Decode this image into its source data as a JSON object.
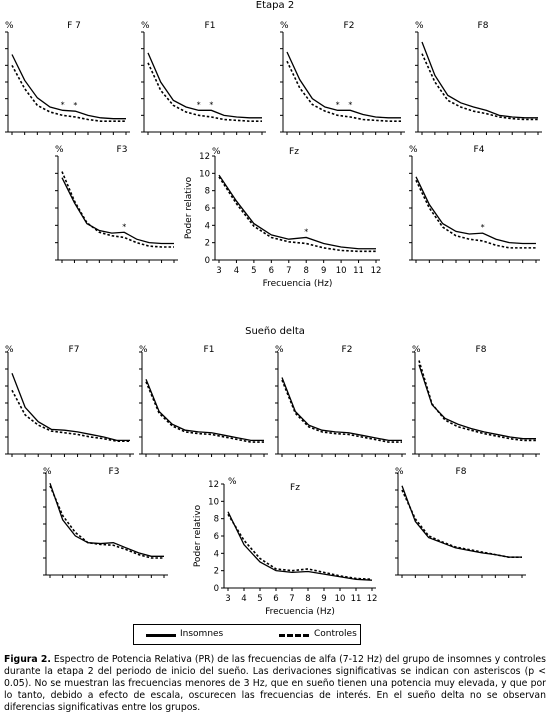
{
  "sections": [
    {
      "title": "Etapa 2"
    },
    {
      "title": "Sueño delta"
    }
  ],
  "legend": {
    "insomnes": "Insomnes",
    "controles": "Controles"
  },
  "caption": {
    "label": "Figura 2.",
    "text": " Espectro de Potencia Relativa (PR) de las frecuencias de alfa (7-12 Hz) del grupo de insomnes y controles durante la etapa 2 del periodo de inicio del sueño. Las derivaciones significativas se indican con asteriscos (p < 0.05). No se muestran las frecuencias menores de 3 Hz, que en sueño tienen una potencia muy elevada, y que por lo tanto, debido a efecto de escala, oscurecen las frecuencias de interés. En el sueño delta no se observan diferencias significativas entre los grupos."
  },
  "colors": {
    "insomnes": "#000000",
    "controles": "#000000"
  },
  "chart_data": [
    {
      "type": "line",
      "panel": "F 7",
      "section": "Etapa 2",
      "percent_label": "%",
      "x": [
        3,
        4,
        5,
        6,
        7,
        8,
        9,
        10,
        11,
        12
      ],
      "ylim": [
        0,
        12
      ],
      "series": [
        {
          "name": "Insomnes",
          "style": "solid",
          "values": [
            9.3,
            6.2,
            4.1,
            3.0,
            2.6,
            2.5,
            2.0,
            1.7,
            1.6,
            1.6
          ]
        },
        {
          "name": "Controles",
          "style": "dashed",
          "values": [
            8.0,
            5.2,
            3.2,
            2.4,
            2.0,
            1.8,
            1.5,
            1.3,
            1.3,
            1.3
          ]
        }
      ],
      "asterisks_at": [
        7,
        8
      ]
    },
    {
      "type": "line",
      "panel": "F1",
      "section": "Etapa 2",
      "percent_label": "%",
      "x": [
        3,
        4,
        5,
        6,
        7,
        8,
        9,
        10,
        11,
        12
      ],
      "ylim": [
        0,
        12
      ],
      "series": [
        {
          "name": "Insomnes",
          "style": "solid",
          "values": [
            9.5,
            6.0,
            3.8,
            3.0,
            2.6,
            2.6,
            2.0,
            1.8,
            1.7,
            1.7
          ]
        },
        {
          "name": "Controles",
          "style": "dashed",
          "values": [
            8.3,
            5.0,
            3.2,
            2.4,
            2.0,
            1.8,
            1.5,
            1.4,
            1.3,
            1.3
          ]
        }
      ],
      "asterisks_at": [
        7,
        8
      ]
    },
    {
      "type": "line",
      "panel": "F2",
      "section": "Etapa 2",
      "percent_label": "%",
      "x": [
        3,
        4,
        5,
        6,
        7,
        8,
        9,
        10,
        11,
        12
      ],
      "ylim": [
        0,
        12
      ],
      "series": [
        {
          "name": "Insomnes",
          "style": "solid",
          "values": [
            9.6,
            6.3,
            4.0,
            3.0,
            2.6,
            2.6,
            2.1,
            1.8,
            1.7,
            1.7
          ]
        },
        {
          "name": "Controles",
          "style": "dashed",
          "values": [
            8.5,
            5.3,
            3.3,
            2.5,
            2.0,
            1.8,
            1.5,
            1.4,
            1.3,
            1.3
          ]
        }
      ],
      "asterisks_at": [
        7,
        8
      ]
    },
    {
      "type": "line",
      "panel": "F8",
      "section": "Etapa 2",
      "percent_label": "%",
      "x": [
        3,
        4,
        5,
        6,
        7,
        8,
        9,
        10,
        11,
        12
      ],
      "ylim": [
        0,
        12
      ],
      "series": [
        {
          "name": "Insomnes",
          "style": "solid",
          "values": [
            10.8,
            6.8,
            4.4,
            3.5,
            3.0,
            2.6,
            2.0,
            1.8,
            1.7,
            1.7
          ]
        },
        {
          "name": "Controles",
          "style": "dashed",
          "values": [
            9.4,
            6.0,
            3.8,
            3.0,
            2.5,
            2.2,
            1.8,
            1.6,
            1.5,
            1.5
          ]
        }
      ],
      "asterisks_at": []
    },
    {
      "type": "line",
      "panel": "F3",
      "section": "Etapa 2",
      "percent_label": "%",
      "x": [
        3,
        4,
        5,
        6,
        7,
        8,
        9,
        10,
        11,
        12
      ],
      "ylim": [
        0,
        12
      ],
      "series": [
        {
          "name": "Insomnes",
          "style": "solid",
          "values": [
            9.5,
            6.6,
            4.2,
            3.4,
            3.1,
            3.2,
            2.4,
            2.0,
            1.9,
            1.9
          ]
        },
        {
          "name": "Controles",
          "style": "dashed",
          "values": [
            10.2,
            6.8,
            4.3,
            3.2,
            2.8,
            2.6,
            2.0,
            1.6,
            1.5,
            1.5
          ]
        }
      ],
      "asterisks_at": [
        8
      ]
    },
    {
      "type": "line",
      "panel": "Fz",
      "section": "Etapa 2",
      "percent_label": "%",
      "x": [
        3,
        4,
        5,
        6,
        7,
        8,
        9,
        10,
        11,
        12
      ],
      "ylim": [
        0,
        12
      ],
      "xlabel": "Frecuencia (Hz)",
      "ylabel": "Poder relativo",
      "xticks": [
        3,
        4,
        5,
        6,
        7,
        8,
        9,
        10,
        11,
        12
      ],
      "yticks": [
        0,
        2,
        4,
        6,
        8,
        10,
        12
      ],
      "series": [
        {
          "name": "Insomnes",
          "style": "solid",
          "values": [
            9.8,
            6.8,
            4.2,
            2.9,
            2.4,
            2.6,
            1.9,
            1.5,
            1.3,
            1.3
          ]
        },
        {
          "name": "Controles",
          "style": "dashed",
          "values": [
            9.6,
            6.5,
            3.9,
            2.6,
            2.1,
            1.9,
            1.4,
            1.1,
            1.0,
            1.0
          ]
        }
      ],
      "asterisks_at": [
        8
      ]
    },
    {
      "type": "line",
      "panel": "F4",
      "section": "Etapa 2",
      "percent_label": "%",
      "x": [
        3,
        4,
        5,
        6,
        7,
        8,
        9,
        10,
        11,
        12
      ],
      "ylim": [
        0,
        12
      ],
      "series": [
        {
          "name": "Insomnes",
          "style": "solid",
          "values": [
            9.6,
            6.4,
            4.2,
            3.3,
            3.0,
            3.1,
            2.4,
            2.0,
            1.9,
            1.9
          ]
        },
        {
          "name": "Controles",
          "style": "dashed",
          "values": [
            9.2,
            6.0,
            3.8,
            2.8,
            2.4,
            2.2,
            1.7,
            1.4,
            1.4,
            1.4
          ]
        }
      ],
      "asterisks_at": [
        8
      ]
    },
    {
      "type": "line",
      "panel": "F7",
      "section": "Sueño delta",
      "percent_label": "%",
      "x": [
        3,
        4,
        5,
        6,
        7,
        8,
        9,
        10,
        11,
        12
      ],
      "ylim": [
        0,
        12
      ],
      "series": [
        {
          "name": "Insomnes",
          "style": "solid",
          "values": [
            9.5,
            5.5,
            3.8,
            2.9,
            2.8,
            2.6,
            2.3,
            2.0,
            1.6,
            1.6
          ]
        },
        {
          "name": "Controles",
          "style": "dashed",
          "values": [
            7.5,
            4.6,
            3.4,
            2.7,
            2.5,
            2.3,
            2.0,
            1.8,
            1.5,
            1.5
          ]
        }
      ],
      "asterisks_at": []
    },
    {
      "type": "line",
      "panel": "F1",
      "section": "Sueño delta",
      "percent_label": "%",
      "x": [
        3,
        4,
        5,
        6,
        7,
        8,
        9,
        10,
        11,
        12
      ],
      "ylim": [
        0,
        12
      ],
      "series": [
        {
          "name": "Insomnes",
          "style": "solid",
          "values": [
            8.8,
            5.0,
            3.5,
            2.8,
            2.6,
            2.5,
            2.2,
            1.9,
            1.6,
            1.6
          ]
        },
        {
          "name": "Controles",
          "style": "dashed",
          "values": [
            8.5,
            4.8,
            3.3,
            2.6,
            2.4,
            2.3,
            2.0,
            1.7,
            1.4,
            1.4
          ]
        }
      ],
      "asterisks_at": []
    },
    {
      "type": "line",
      "panel": "F2",
      "section": "Sueño delta",
      "percent_label": "%",
      "x": [
        3,
        4,
        5,
        6,
        7,
        8,
        9,
        10,
        11,
        12
      ],
      "ylim": [
        0,
        12
      ],
      "series": [
        {
          "name": "Insomnes",
          "style": "solid",
          "values": [
            9.0,
            5.0,
            3.4,
            2.8,
            2.6,
            2.5,
            2.2,
            1.9,
            1.6,
            1.6
          ]
        },
        {
          "name": "Controles",
          "style": "dashed",
          "values": [
            8.7,
            4.8,
            3.2,
            2.6,
            2.4,
            2.3,
            2.0,
            1.7,
            1.4,
            1.4
          ]
        }
      ],
      "asterisks_at": []
    },
    {
      "type": "line",
      "panel": "F8",
      "section": "Sueño delta",
      "percent_label": "%",
      "x": [
        3,
        4,
        5,
        6,
        7,
        8,
        9,
        10,
        11,
        12
      ],
      "ylim": [
        0,
        12
      ],
      "series": [
        {
          "name": "Insomnes",
          "style": "solid",
          "values": [
            10.5,
            5.8,
            4.2,
            3.5,
            3.0,
            2.6,
            2.3,
            2.0,
            1.8,
            1.8
          ]
        },
        {
          "name": "Controles",
          "style": "dashed",
          "values": [
            11.0,
            5.9,
            4.0,
            3.2,
            2.8,
            2.4,
            2.1,
            1.8,
            1.6,
            1.6
          ]
        }
      ],
      "asterisks_at": []
    },
    {
      "type": "line",
      "panel": "F3",
      "section": "Sueño delta",
      "percent_label": "%",
      "x": [
        3,
        4,
        5,
        6,
        7,
        8,
        9,
        10,
        11,
        12
      ],
      "ylim": [
        0,
        12
      ],
      "series": [
        {
          "name": "Insomnes",
          "style": "solid",
          "values": [
            10.8,
            6.5,
            4.6,
            3.8,
            3.7,
            3.8,
            3.2,
            2.6,
            2.2,
            2.2
          ]
        },
        {
          "name": "Controles",
          "style": "dashed",
          "values": [
            10.5,
            7.0,
            5.0,
            3.8,
            3.6,
            3.5,
            3.0,
            2.4,
            2.0,
            2.0
          ]
        }
      ],
      "asterisks_at": []
    },
    {
      "type": "line",
      "panel": "Fz",
      "section": "Sueño delta",
      "percent_label": "%",
      "x": [
        3,
        4,
        5,
        6,
        7,
        8,
        9,
        10,
        11,
        12
      ],
      "ylim": [
        0,
        12
      ],
      "xlabel": "Frecuencia (Hz)",
      "ylabel": "Poder relativo",
      "xticks": [
        3,
        4,
        5,
        6,
        7,
        8,
        9,
        10,
        11,
        12
      ],
      "yticks": [
        0,
        2,
        4,
        6,
        8,
        10,
        12
      ],
      "series": [
        {
          "name": "Insomnes",
          "style": "solid",
          "values": [
            8.8,
            5.0,
            3.0,
            2.0,
            1.8,
            1.9,
            1.6,
            1.3,
            1.0,
            0.9
          ]
        },
        {
          "name": "Controles",
          "style": "dashed",
          "values": [
            8.5,
            5.5,
            3.4,
            2.2,
            2.0,
            2.2,
            1.8,
            1.4,
            1.1,
            1.0
          ]
        }
      ],
      "asterisks_at": []
    },
    {
      "type": "line",
      "panel": "F8",
      "section": "Sueño delta",
      "percent_label": "%",
      "x": [
        3,
        4,
        5,
        6,
        7,
        8,
        9,
        10,
        11,
        12
      ],
      "ylim": [
        0,
        12
      ],
      "series": [
        {
          "name": "Insomnes",
          "style": "solid",
          "values": [
            10.5,
            6.3,
            4.4,
            3.8,
            3.2,
            2.9,
            2.6,
            2.4,
            2.1,
            2.1
          ]
        },
        {
          "name": "Controles",
          "style": "dashed",
          "values": [
            10.0,
            6.6,
            4.6,
            3.9,
            3.3,
            3.0,
            2.7,
            2.4,
            2.1,
            2.1
          ]
        }
      ],
      "asterisks_at": []
    }
  ]
}
